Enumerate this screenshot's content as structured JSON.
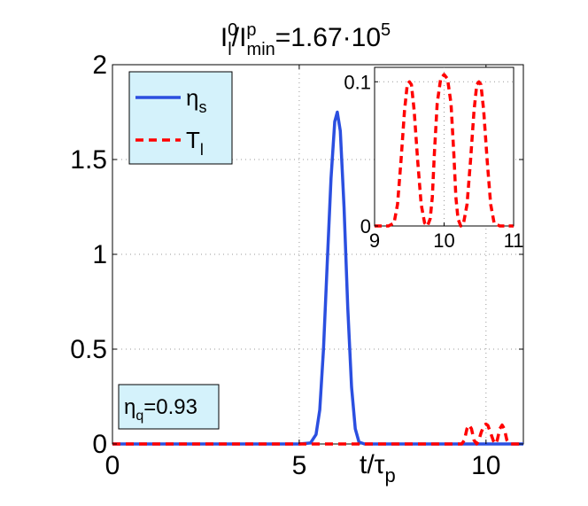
{
  "chart_data": {
    "type": "line",
    "title": {
      "parts": [
        {
          "text": "I",
          "sup": "0",
          "sub": "l"
        },
        {
          "text": "/I",
          "sup": "p",
          "sub": "min"
        },
        {
          "text": "=1.67·10",
          "sup": "5"
        }
      ]
    },
    "xlabel": {
      "text": "t/τ",
      "sub": "p"
    },
    "ylabel": "",
    "xlim": [
      0,
      11
    ],
    "ylim": [
      0,
      2
    ],
    "xticks": [
      0,
      5,
      10
    ],
    "xtick_labels": [
      "0",
      "5",
      "10"
    ],
    "yticks": [
      0,
      0.5,
      1,
      1.5,
      2
    ],
    "ytick_labels": [
      "0",
      "0.5",
      "1",
      "1.5",
      "2"
    ],
    "grid": "dotted",
    "legend": {
      "placement": "top-left",
      "entries": [
        {
          "label": "η",
          "sub": "s",
          "color": "#2b4fe0",
          "style": "solid"
        },
        {
          "label": "T",
          "sub": "l",
          "color": "#ff0000",
          "style": "dashed"
        }
      ]
    },
    "annotation": {
      "label": "η",
      "sub": "q",
      "text": "=0.93",
      "placement": "bottom-left"
    },
    "series": [
      {
        "name": "η_s",
        "color": "#2b4fe0",
        "style": "solid",
        "points": [
          [
            0,
            0
          ],
          [
            5.0,
            0
          ],
          [
            5.3,
            0.005
          ],
          [
            5.45,
            0.05
          ],
          [
            5.55,
            0.18
          ],
          [
            5.65,
            0.5
          ],
          [
            5.75,
            0.95
          ],
          [
            5.85,
            1.4
          ],
          [
            5.95,
            1.7
          ],
          [
            6.02,
            1.75
          ],
          [
            6.1,
            1.65
          ],
          [
            6.2,
            1.25
          ],
          [
            6.3,
            0.72
          ],
          [
            6.4,
            0.3
          ],
          [
            6.5,
            0.08
          ],
          [
            6.6,
            0.01
          ],
          [
            6.75,
            0
          ],
          [
            11,
            0
          ]
        ]
      },
      {
        "name": "T_l",
        "color": "#ff0000",
        "style": "dashed",
        "points": [
          [
            0,
            0
          ],
          [
            9.35,
            0
          ],
          [
            9.42,
            0.02
          ],
          [
            9.49,
            0.08
          ],
          [
            9.55,
            0.1
          ],
          [
            9.61,
            0.08
          ],
          [
            9.68,
            0.02
          ],
          [
            9.75,
            0
          ],
          [
            9.8,
            0.015
          ],
          [
            9.87,
            0.06
          ],
          [
            9.95,
            0.1
          ],
          [
            10.0,
            0.105
          ],
          [
            10.05,
            0.098
          ],
          [
            10.12,
            0.06
          ],
          [
            10.2,
            0.015
          ],
          [
            10.25,
            0
          ],
          [
            10.3,
            0.02
          ],
          [
            10.37,
            0.08
          ],
          [
            10.43,
            0.1
          ],
          [
            10.49,
            0.08
          ],
          [
            10.56,
            0.02
          ],
          [
            10.63,
            0
          ],
          [
            11,
            0
          ]
        ]
      }
    ],
    "inset": {
      "type": "line",
      "xlim": [
        9,
        11
      ],
      "ylim": [
        0,
        0.11
      ],
      "xticks": [
        9,
        10,
        11
      ],
      "xtick_labels": [
        "9",
        "10",
        "11"
      ],
      "yticks": [
        0,
        0.1
      ],
      "ytick_labels": [
        "0",
        "0.1"
      ],
      "grid": "dotted",
      "series": [
        {
          "name": "T_l",
          "color": "#ff0000",
          "style": "dashed",
          "points": [
            [
              9,
              0
            ],
            [
              9.2,
              0
            ],
            [
              9.28,
              0.002
            ],
            [
              9.33,
              0.015
            ],
            [
              9.38,
              0.045
            ],
            [
              9.43,
              0.08
            ],
            [
              9.47,
              0.098
            ],
            [
              9.5,
              0.1
            ],
            [
              9.53,
              0.098
            ],
            [
              9.57,
              0.08
            ],
            [
              9.62,
              0.045
            ],
            [
              9.67,
              0.015
            ],
            [
              9.72,
              0.002
            ],
            [
              9.76,
              0
            ],
            [
              9.8,
              0.005
            ],
            [
              9.83,
              0.02
            ],
            [
              9.86,
              0.05
            ],
            [
              9.9,
              0.085
            ],
            [
              9.95,
              0.102
            ],
            [
              10.0,
              0.105
            ],
            [
              10.05,
              0.102
            ],
            [
              10.1,
              0.085
            ],
            [
              10.14,
              0.05
            ],
            [
              10.17,
              0.02
            ],
            [
              10.2,
              0.005
            ],
            [
              10.24,
              0
            ],
            [
              10.28,
              0.002
            ],
            [
              10.33,
              0.015
            ],
            [
              10.38,
              0.045
            ],
            [
              10.43,
              0.08
            ],
            [
              10.47,
              0.098
            ],
            [
              10.5,
              0.1
            ],
            [
              10.53,
              0.098
            ],
            [
              10.57,
              0.08
            ],
            [
              10.62,
              0.045
            ],
            [
              10.67,
              0.015
            ],
            [
              10.72,
              0.002
            ],
            [
              10.8,
              0
            ],
            [
              11,
              0
            ]
          ]
        }
      ]
    }
  }
}
